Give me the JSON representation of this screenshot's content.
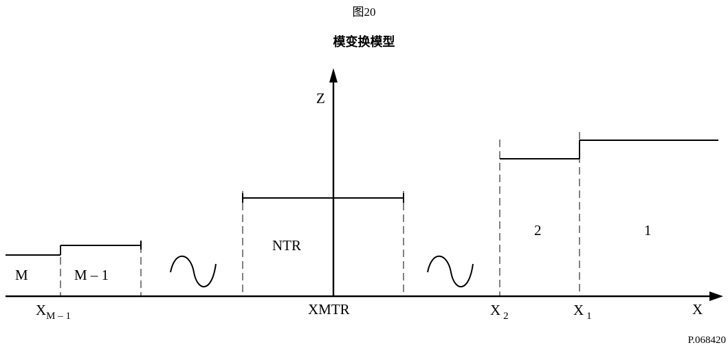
{
  "figure": {
    "number": "图20",
    "title": "模变换模型",
    "reference": "P.068420"
  },
  "axes": {
    "vertical": "Z",
    "horizontal": "X"
  },
  "regions": {
    "m": "M",
    "m_minus_1": "M – 1",
    "ntr": "NTR",
    "two": "2",
    "one": "1"
  },
  "boundaries": {
    "xm1_main": "X",
    "xm1_sub": "M – 1",
    "xmtr": "XMTR",
    "x2_main": "X",
    "x2_sub": "2",
    "x1_main": "X",
    "x1_sub": "1"
  },
  "symbols": {
    "omission": "tilde-omission-icon"
  }
}
